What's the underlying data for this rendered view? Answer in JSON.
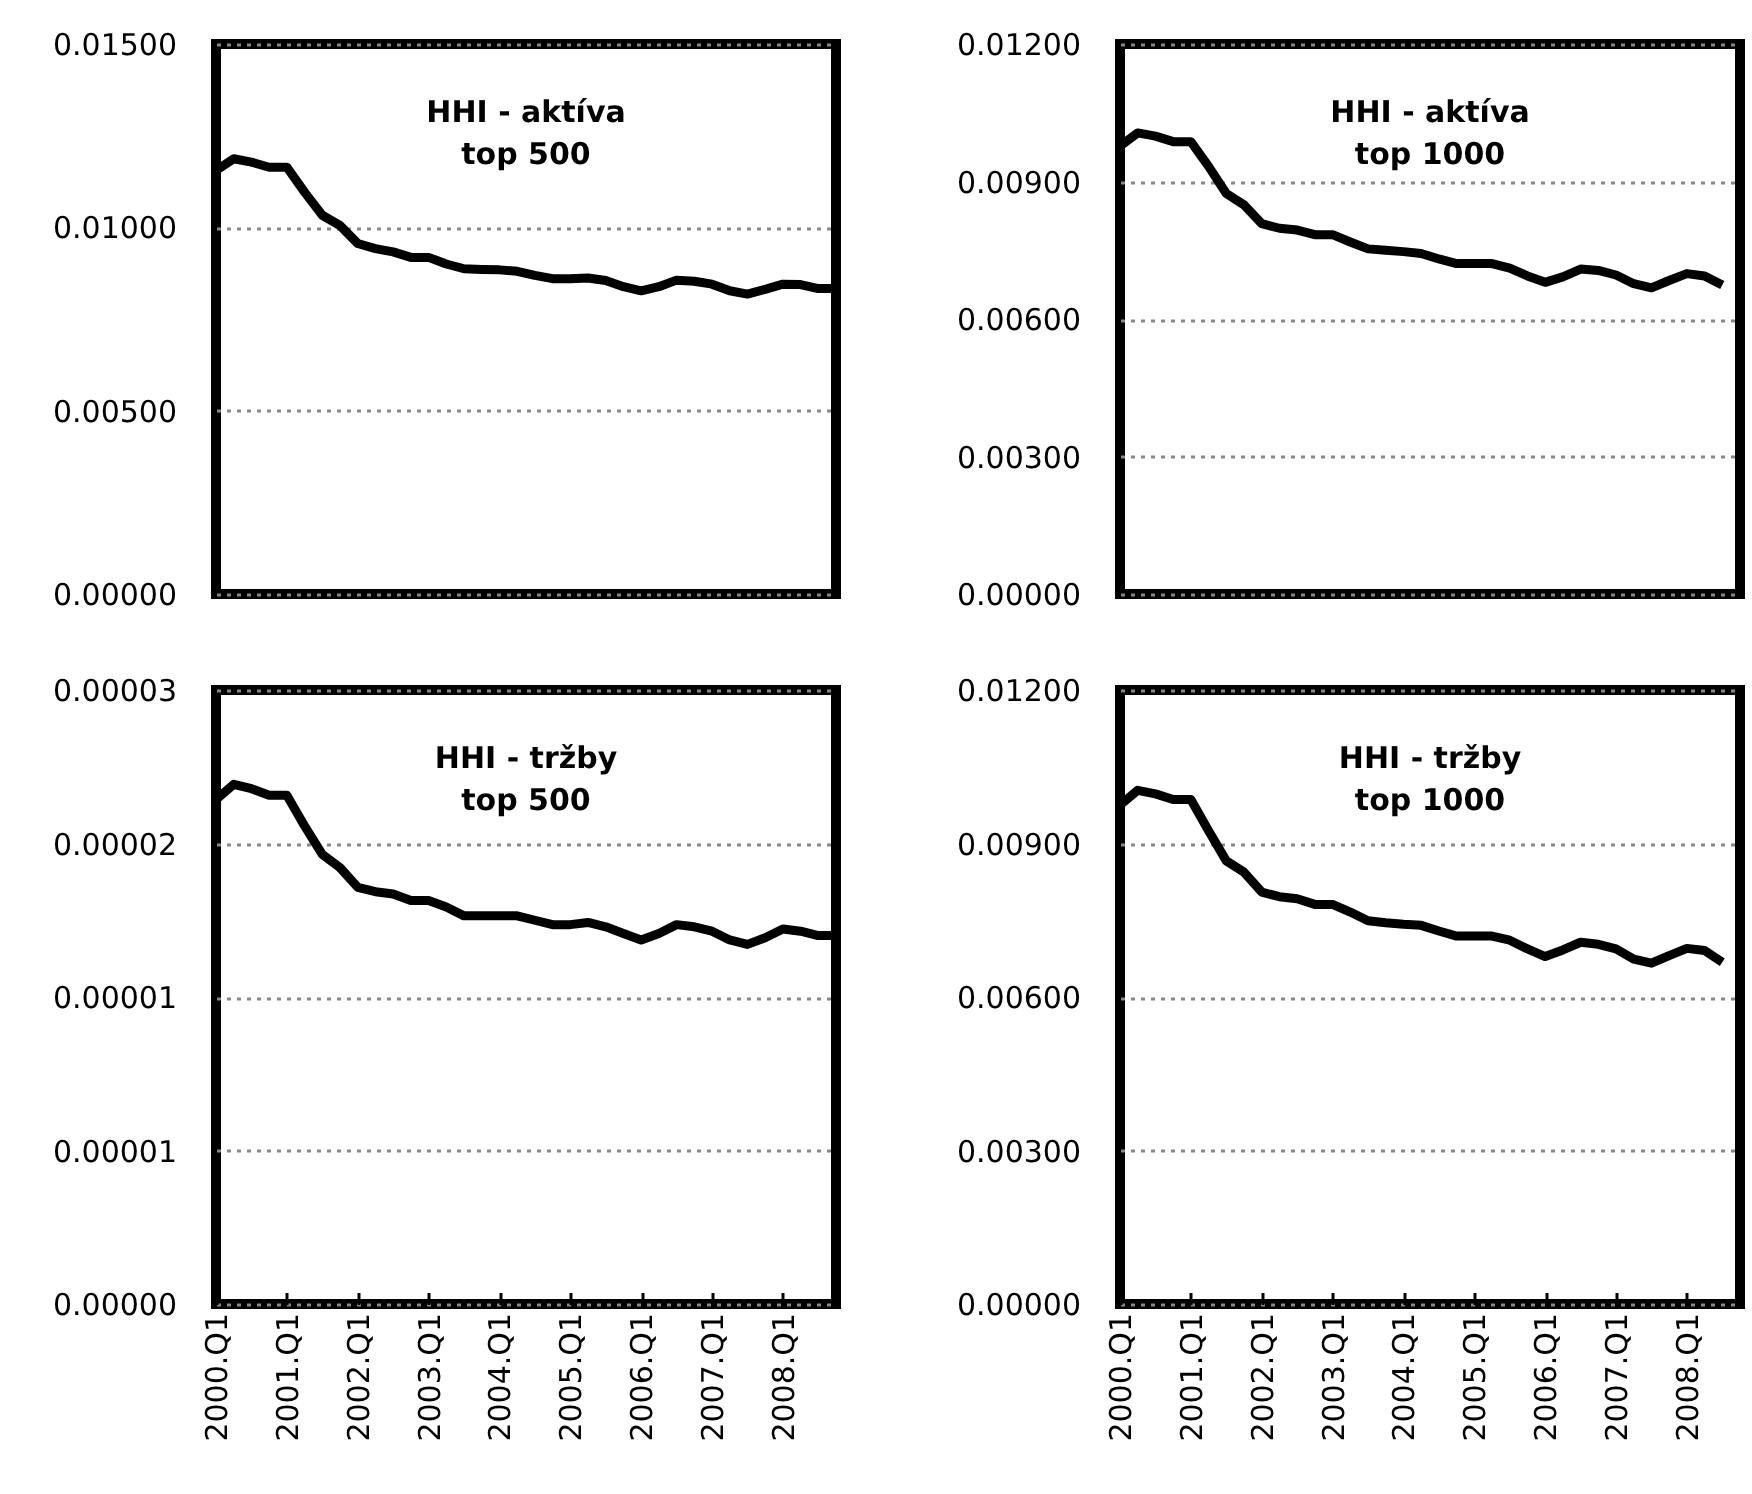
{
  "chart_data": [
    {
      "type": "line",
      "title": "HHI - aktíva",
      "subtitle": "top 500",
      "categories": [
        null,
        null,
        null,
        null,
        null,
        null,
        null,
        null,
        null,
        null,
        null,
        null,
        null,
        null,
        null,
        null,
        null,
        null,
        null,
        null,
        null,
        null,
        null,
        null,
        null,
        null,
        null,
        null,
        null,
        null,
        null,
        null,
        null,
        null,
        null,
        null
      ],
      "series": [
        {
          "color": "#000000",
          "values": [
            0.01155,
            0.01187,
            0.01178,
            0.01164,
            0.01164,
            0.01096,
            0.01033,
            0.01005,
            0.00956,
            0.00942,
            0.00933,
            0.00918,
            0.00918,
            0.009,
            0.00887,
            0.00885,
            0.00884,
            0.0088,
            0.00869,
            0.0086,
            0.0086,
            0.00862,
            0.00855,
            0.00838,
            0.00827,
            0.00838,
            0.00856,
            0.00853,
            0.00845,
            0.00827,
            0.00818,
            0.00831,
            0.00845,
            0.00844,
            0.00833,
            0.00833
          ]
        }
      ],
      "ylim": [
        0,
        0.015
      ],
      "yticks": [
        {
          "value": 0,
          "label": "0.00000"
        },
        {
          "value": 0.005,
          "label": "0.00500"
        },
        {
          "value": 0.01,
          "label": "0.01000"
        },
        {
          "value": 0.015,
          "label": "0.01500"
        }
      ],
      "grid": "y",
      "tick_labels": "y"
    },
    {
      "type": "line",
      "title": "HHI - aktíva",
      "subtitle": "top 1000",
      "categories": [
        null,
        null,
        null,
        null,
        null,
        null,
        null,
        null,
        null,
        null,
        null,
        null,
        null,
        null,
        null,
        null,
        null,
        null,
        null,
        null,
        null,
        null,
        null,
        null,
        null,
        null,
        null,
        null,
        null,
        null,
        null,
        null,
        null,
        null,
        null,
        null
      ],
      "series": [
        {
          "color": "#000000",
          "values": [
            0.00977,
            0.01006,
            0.00999,
            0.00987,
            0.00987,
            0.00933,
            0.00874,
            0.00849,
            0.00808,
            0.00798,
            0.00794,
            0.00784,
            0.00784,
            0.00768,
            0.00753,
            0.0075,
            0.00747,
            0.00743,
            0.00731,
            0.00721,
            0.00721,
            0.00721,
            0.00711,
            0.00694,
            0.0068,
            0.00692,
            0.00709,
            0.00706,
            0.00696,
            0.00677,
            0.00668,
            0.00684,
            0.00699,
            0.00694,
            0.00674,
            null
          ]
        }
      ],
      "ylim": [
        0,
        0.012
      ],
      "yticks": [
        {
          "value": 0,
          "label": "0.00000"
        },
        {
          "value": 0.003,
          "label": "0.00300"
        },
        {
          "value": 0.006,
          "label": "0.00600"
        },
        {
          "value": 0.009,
          "label": "0.00900"
        },
        {
          "value": 0.012,
          "label": "0.01200"
        }
      ],
      "grid": "y",
      "tick_labels": "y"
    },
    {
      "type": "line",
      "title": "HHI - tržby",
      "subtitle": "top 500",
      "categories": [
        "2000.Q1",
        null,
        null,
        null,
        "2001.Q1",
        null,
        null,
        null,
        "2002.Q1",
        null,
        null,
        null,
        "2003.Q1",
        null,
        null,
        null,
        "2004.Q1",
        null,
        null,
        null,
        "2005.Q1",
        null,
        null,
        null,
        "2006.Q1",
        null,
        null,
        null,
        "2007.Q1",
        null,
        null,
        null,
        "2008.Q1",
        null,
        null,
        null
      ],
      "series": [
        {
          "color": "#000000",
          "values": [
            2.3e-05,
            2.37e-05,
            2.35e-05,
            2.32e-05,
            2.32e-05,
            2.18e-05,
            2.05e-05,
            1.99e-05,
            1.9e-05,
            1.88e-05,
            1.87e-05,
            1.84e-05,
            1.84e-05,
            1.81e-05,
            1.77e-05,
            1.77e-05,
            1.77e-05,
            1.77e-05,
            1.75e-05,
            1.73e-05,
            1.73e-05,
            1.74e-05,
            1.72e-05,
            1.69e-05,
            1.66e-05,
            1.69e-05,
            1.73e-05,
            1.72e-05,
            1.7e-05,
            1.66e-05,
            1.64e-05,
            1.67e-05,
            1.71e-05,
            1.7e-05,
            1.68e-05,
            1.68e-05
          ]
        }
      ],
      "ylim": [
        0,
        2.8e-05
      ],
      "yticks": [
        {
          "value": 0,
          "label": "0.00000"
        },
        {
          "value": 7e-06,
          "label": "0.00001"
        },
        {
          "value": 1.4e-05,
          "label": "0.00001"
        },
        {
          "value": 2.1e-05,
          "label": "0.00002"
        },
        {
          "value": 2.8e-05,
          "label": "0.00003"
        }
      ],
      "grid": "y"
    },
    {
      "type": "line",
      "title": "HHI - tržby",
      "subtitle": "top 1000",
      "categories": [
        "2000.Q1",
        null,
        null,
        null,
        "2001.Q1",
        null,
        null,
        null,
        "2002.Q1",
        null,
        null,
        null,
        "2003.Q1",
        null,
        null,
        null,
        "2004.Q1",
        null,
        null,
        null,
        "2005.Q1",
        null,
        null,
        null,
        "2006.Q1",
        null,
        null,
        null,
        "2007.Q1",
        null,
        null,
        null,
        "2008.Q1",
        null,
        null,
        null
      ],
      "series": [
        {
          "color": "#000000",
          "values": [
            0.00975,
            0.01004,
            0.00997,
            0.00986,
            0.00986,
            0.00925,
            0.00866,
            0.00844,
            0.00805,
            0.00796,
            0.00792,
            0.00781,
            0.00781,
            0.00766,
            0.00749,
            0.00745,
            0.00742,
            0.0074,
            0.00729,
            0.00719,
            0.00719,
            0.00719,
            0.00711,
            0.00694,
            0.00679,
            0.00692,
            0.00707,
            0.00703,
            0.00694,
            0.00674,
            0.00666,
            0.00681,
            0.00695,
            0.00691,
            0.00668,
            null
          ]
        }
      ],
      "ylim": [
        0,
        0.012
      ],
      "yticks": [
        {
          "value": 0,
          "label": "0.00000"
        },
        {
          "value": 0.003,
          "label": "0.00300"
        },
        {
          "value": 0.006,
          "label": "0.00600"
        },
        {
          "value": 0.009,
          "label": "0.00900"
        },
        {
          "value": 0.012,
          "label": "0.01200"
        }
      ],
      "grid": "y"
    }
  ]
}
